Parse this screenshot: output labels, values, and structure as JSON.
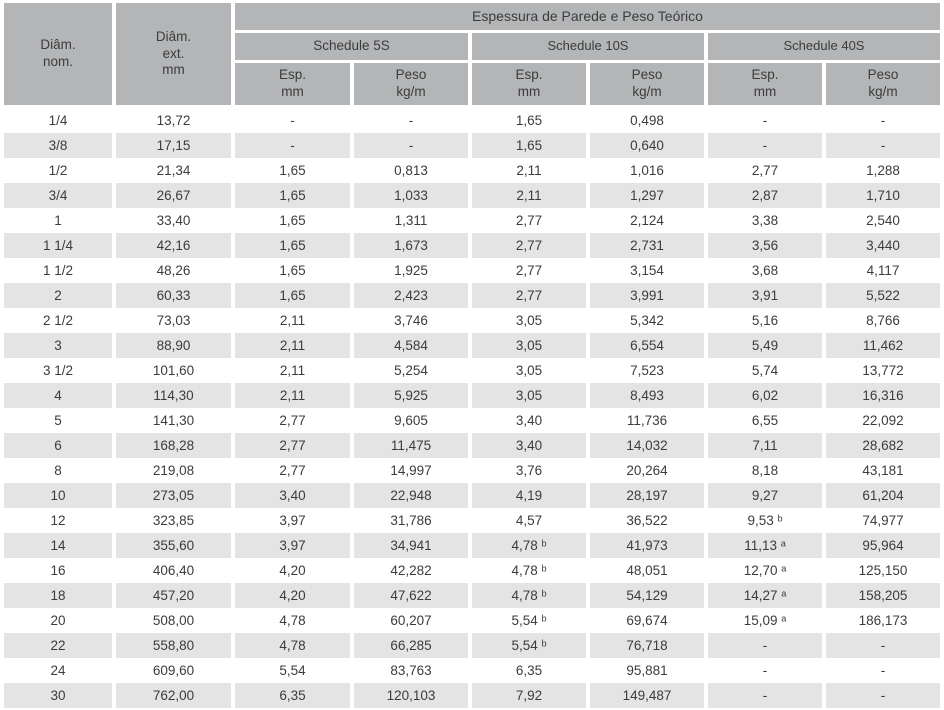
{
  "table": {
    "title": "Espessura de Parede e Peso Teórico",
    "col1_header": "Diâm.\nnom.",
    "col2_header": "Diâm.\next.\nmm",
    "groups": [
      {
        "label": "Schedule 5S"
      },
      {
        "label": "Schedule 10S"
      },
      {
        "label": "Schedule 40S"
      }
    ],
    "sub_esp": "Esp.\nmm",
    "sub_peso": "Peso\nkg/m",
    "rows": [
      {
        "nom": "1/4",
        "ext": "13,72",
        "s5_esp": "-",
        "s5_peso": "-",
        "s10_esp": "1,65",
        "s10_peso": "0,498",
        "s40_esp": "-",
        "s40_peso": "-"
      },
      {
        "nom": "3/8",
        "ext": "17,15",
        "s5_esp": "-",
        "s5_peso": "-",
        "s10_esp": "1,65",
        "s10_peso": "0,640",
        "s40_esp": "-",
        "s40_peso": "-"
      },
      {
        "nom": "1/2",
        "ext": "21,34",
        "s5_esp": "1,65",
        "s5_peso": "0,813",
        "s10_esp": "2,11",
        "s10_peso": "1,016",
        "s40_esp": "2,77",
        "s40_peso": "1,288"
      },
      {
        "nom": "3/4",
        "ext": "26,67",
        "s5_esp": "1,65",
        "s5_peso": "1,033",
        "s10_esp": "2,11",
        "s10_peso": "1,297",
        "s40_esp": "2,87",
        "s40_peso": "1,710"
      },
      {
        "nom": "1",
        "ext": "33,40",
        "s5_esp": "1,65",
        "s5_peso": "1,311",
        "s10_esp": "2,77",
        "s10_peso": "2,124",
        "s40_esp": "3,38",
        "s40_peso": "2,540"
      },
      {
        "nom": "1 1/4",
        "ext": "42,16",
        "s5_esp": "1,65",
        "s5_peso": "1,673",
        "s10_esp": "2,77",
        "s10_peso": "2,731",
        "s40_esp": "3,56",
        "s40_peso": "3,440"
      },
      {
        "nom": "1 1/2",
        "ext": "48,26",
        "s5_esp": "1,65",
        "s5_peso": "1,925",
        "s10_esp": "2,77",
        "s10_peso": "3,154",
        "s40_esp": "3,68",
        "s40_peso": "4,117"
      },
      {
        "nom": "2",
        "ext": "60,33",
        "s5_esp": "1,65",
        "s5_peso": "2,423",
        "s10_esp": "2,77",
        "s10_peso": "3,991",
        "s40_esp": "3,91",
        "s40_peso": "5,522"
      },
      {
        "nom": "2 1/2",
        "ext": "73,03",
        "s5_esp": "2,11",
        "s5_peso": "3,746",
        "s10_esp": "3,05",
        "s10_peso": "5,342",
        "s40_esp": "5,16",
        "s40_peso": "8,766"
      },
      {
        "nom": "3",
        "ext": "88,90",
        "s5_esp": "2,11",
        "s5_peso": "4,584",
        "s10_esp": "3,05",
        "s10_peso": "6,554",
        "s40_esp": "5,49",
        "s40_peso": "11,462"
      },
      {
        "nom": "3 1/2",
        "ext": "101,60",
        "s5_esp": "2,11",
        "s5_peso": "5,254",
        "s10_esp": "3,05",
        "s10_peso": "7,523",
        "s40_esp": "5,74",
        "s40_peso": "13,772"
      },
      {
        "nom": "4",
        "ext": "114,30",
        "s5_esp": "2,11",
        "s5_peso": "5,925",
        "s10_esp": "3,05",
        "s10_peso": "8,493",
        "s40_esp": "6,02",
        "s40_peso": "16,316"
      },
      {
        "nom": "5",
        "ext": "141,30",
        "s5_esp": "2,77",
        "s5_peso": "9,605",
        "s10_esp": "3,40",
        "s10_peso": "11,736",
        "s40_esp": "6,55",
        "s40_peso": "22,092"
      },
      {
        "nom": "6",
        "ext": "168,28",
        "s5_esp": "2,77",
        "s5_peso": "11,475",
        "s10_esp": "3,40",
        "s10_peso": "14,032",
        "s40_esp": "7,11",
        "s40_peso": "28,682"
      },
      {
        "nom": "8",
        "ext": "219,08",
        "s5_esp": "2,77",
        "s5_peso": "14,997",
        "s10_esp": "3,76",
        "s10_peso": "20,264",
        "s40_esp": "8,18",
        "s40_peso": "43,181"
      },
      {
        "nom": "10",
        "ext": "273,05",
        "s5_esp": "3,40",
        "s5_peso": "22,948",
        "s10_esp": "4,19",
        "s10_peso": "28,197",
        "s40_esp": "9,27",
        "s40_peso": "61,204"
      },
      {
        "nom": "12",
        "ext": "323,85",
        "s5_esp": "3,97",
        "s5_peso": "31,786",
        "s10_esp": "4,57",
        "s10_peso": "36,522",
        "s40_esp": "9,53 ᵇ",
        "s40_peso": "74,977"
      },
      {
        "nom": "14",
        "ext": "355,60",
        "s5_esp": "3,97",
        "s5_peso": "34,941",
        "s10_esp": "4,78 ᵇ",
        "s10_peso": "41,973",
        "s40_esp": "11,13 ᵃ",
        "s40_peso": "95,964"
      },
      {
        "nom": "16",
        "ext": "406,40",
        "s5_esp": "4,20",
        "s5_peso": "42,282",
        "s10_esp": "4,78 ᵇ",
        "s10_peso": "48,051",
        "s40_esp": "12,70 ᵃ",
        "s40_peso": "125,150"
      },
      {
        "nom": "18",
        "ext": "457,20",
        "s5_esp": "4,20",
        "s5_peso": "47,622",
        "s10_esp": "4,78 ᵇ",
        "s10_peso": "54,129",
        "s40_esp": "14,27 ᵃ",
        "s40_peso": "158,205"
      },
      {
        "nom": "20",
        "ext": "508,00",
        "s5_esp": "4,78",
        "s5_peso": "60,207",
        "s10_esp": "5,54 ᵇ",
        "s10_peso": "69,674",
        "s40_esp": "15,09 ᵃ",
        "s40_peso": "186,173"
      },
      {
        "nom": "22",
        "ext": "558,80",
        "s5_esp": "4,78",
        "s5_peso": "66,285",
        "s10_esp": "5,54 ᵇ",
        "s10_peso": "76,718",
        "s40_esp": "-",
        "s40_peso": "-"
      },
      {
        "nom": "24",
        "ext": "609,60",
        "s5_esp": "5,54",
        "s5_peso": "83,763",
        "s10_esp": "6,35",
        "s10_peso": "95,881",
        "s40_esp": "-",
        "s40_peso": "-"
      },
      {
        "nom": "30",
        "ext": "762,00",
        "s5_esp": "6,35",
        "s5_peso": "120,103",
        "s10_esp": "7,92",
        "s10_peso": "149,487",
        "s40_esp": "-",
        "s40_peso": "-"
      }
    ],
    "colors": {
      "header_bg": "#b3b5b7",
      "stripe_bg": "#e4e4e5",
      "text": "#3c3c3c",
      "page_bg": "#ffffff"
    }
  }
}
